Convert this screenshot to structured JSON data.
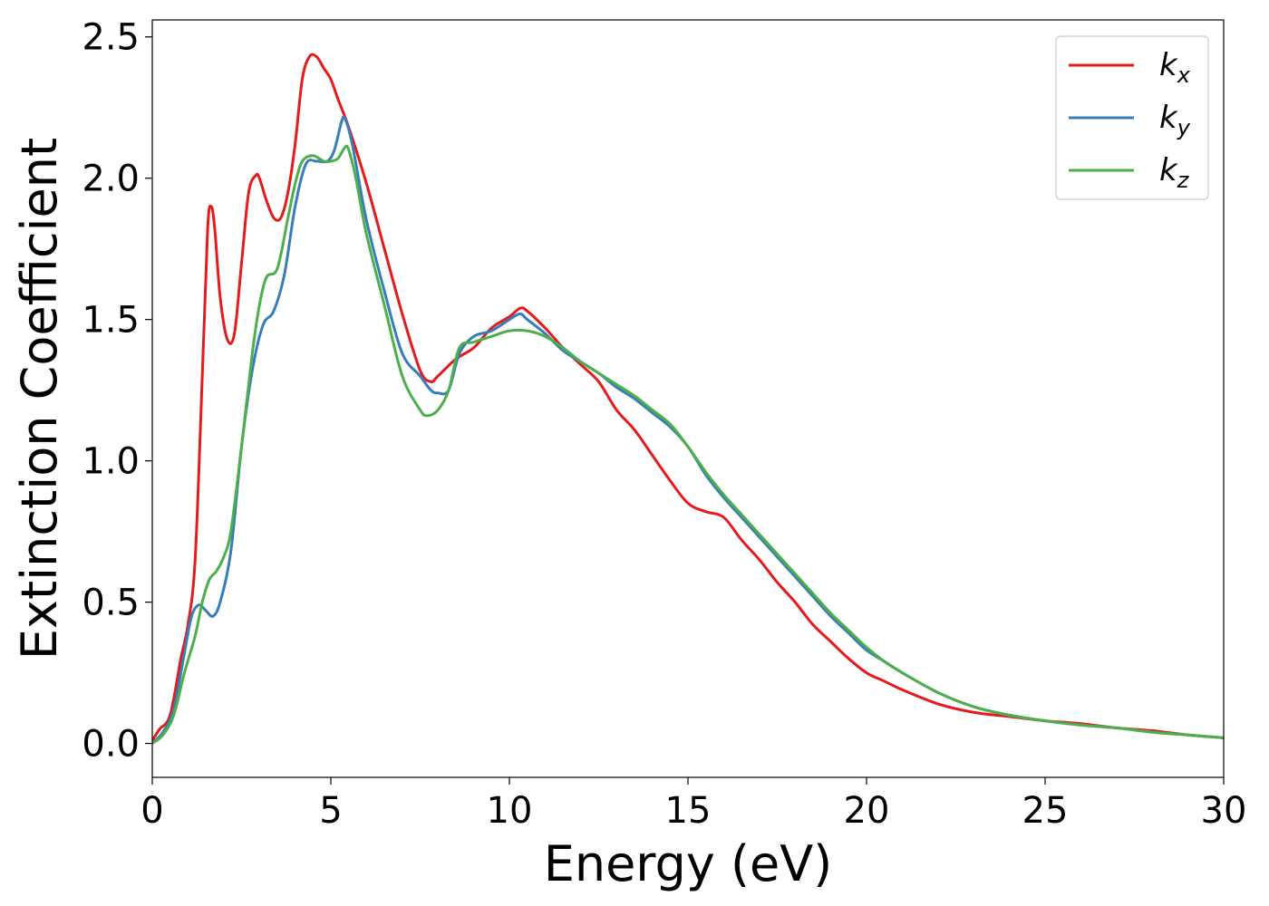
{
  "chart_data": {
    "type": "line",
    "xlabel": "Energy (eV)",
    "ylabel": "Extinction Coefficient",
    "xlim": [
      0,
      30
    ],
    "ylim": [
      -0.12,
      2.56
    ],
    "xticks": [
      0,
      5,
      10,
      15,
      20,
      25,
      30
    ],
    "yticks": [
      0.0,
      0.5,
      1.0,
      1.5,
      2.0,
      2.5
    ],
    "xtick_labels": [
      "0",
      "5",
      "10",
      "15",
      "20",
      "25",
      "30"
    ],
    "ytick_labels": [
      "0.0",
      "0.5",
      "1.0",
      "1.5",
      "2.0",
      "2.5"
    ],
    "grid": false,
    "legend": "top-right",
    "series": [
      {
        "name": "k",
        "subscript": "x",
        "color": "#e41a1c",
        "x": [
          0,
          0.2,
          0.5,
          0.8,
          1.0,
          1.2,
          1.4,
          1.55,
          1.65,
          1.75,
          1.9,
          2.1,
          2.3,
          2.5,
          2.7,
          2.9,
          3.0,
          3.2,
          3.4,
          3.6,
          3.8,
          4.0,
          4.2,
          4.4,
          4.6,
          4.8,
          5.0,
          5.2,
          5.5,
          6.0,
          6.5,
          7.0,
          7.5,
          7.8,
          8.0,
          8.5,
          9.0,
          9.5,
          10.0,
          10.3,
          10.5,
          11.0,
          11.5,
          12.0,
          12.5,
          13.0,
          13.5,
          14.0,
          14.5,
          15.0,
          15.5,
          16.0,
          16.5,
          17.0,
          17.5,
          18.0,
          18.5,
          19.0,
          19.5,
          20.0,
          20.5,
          21.0,
          22.0,
          23.0,
          24.0,
          25.0,
          26.0,
          27.0,
          28.0,
          29.0,
          30.0
        ],
        "y": [
          0.01,
          0.05,
          0.1,
          0.3,
          0.42,
          0.65,
          1.3,
          1.82,
          1.9,
          1.82,
          1.58,
          1.43,
          1.45,
          1.7,
          1.95,
          2.01,
          2.0,
          1.92,
          1.86,
          1.86,
          1.95,
          2.12,
          2.35,
          2.43,
          2.43,
          2.39,
          2.35,
          2.28,
          2.18,
          1.98,
          1.75,
          1.52,
          1.32,
          1.28,
          1.3,
          1.36,
          1.4,
          1.47,
          1.51,
          1.54,
          1.53,
          1.47,
          1.4,
          1.34,
          1.28,
          1.18,
          1.11,
          1.02,
          0.93,
          0.85,
          0.82,
          0.8,
          0.72,
          0.65,
          0.57,
          0.5,
          0.42,
          0.36,
          0.3,
          0.25,
          0.22,
          0.19,
          0.14,
          0.11,
          0.095,
          0.08,
          0.07,
          0.055,
          0.045,
          0.03,
          0.02
        ]
      },
      {
        "name": "k",
        "subscript": "y",
        "color": "#377eb8",
        "x": [
          0,
          0.3,
          0.6,
          0.9,
          1.1,
          1.3,
          1.5,
          1.7,
          1.9,
          2.2,
          2.5,
          2.8,
          3.1,
          3.4,
          3.7,
          4.0,
          4.3,
          4.6,
          4.9,
          5.1,
          5.3,
          5.4,
          5.6,
          6.0,
          6.5,
          7.0,
          7.5,
          7.8,
          8.0,
          8.3,
          8.6,
          9.0,
          9.5,
          10.0,
          10.3,
          10.5,
          11.0,
          11.5,
          12.0,
          12.5,
          13.0,
          13.5,
          14.0,
          14.5,
          15.0,
          15.5,
          16.0,
          16.5,
          17.0,
          17.5,
          18.0,
          18.5,
          19.0,
          19.5,
          20.0,
          20.5,
          21.0,
          22.0,
          23.0,
          24.0,
          25.0,
          26.0,
          27.0,
          28.0,
          29.0,
          30.0
        ],
        "y": [
          0.0,
          0.04,
          0.12,
          0.32,
          0.45,
          0.49,
          0.47,
          0.45,
          0.5,
          0.68,
          1.05,
          1.32,
          1.48,
          1.53,
          1.66,
          1.9,
          2.05,
          2.06,
          2.06,
          2.1,
          2.2,
          2.21,
          2.12,
          1.85,
          1.6,
          1.38,
          1.3,
          1.25,
          1.24,
          1.25,
          1.38,
          1.44,
          1.46,
          1.5,
          1.52,
          1.5,
          1.45,
          1.39,
          1.35,
          1.31,
          1.26,
          1.22,
          1.17,
          1.12,
          1.05,
          0.95,
          0.87,
          0.8,
          0.73,
          0.66,
          0.59,
          0.52,
          0.45,
          0.39,
          0.33,
          0.29,
          0.25,
          0.18,
          0.13,
          0.1,
          0.08,
          0.065,
          0.055,
          0.04,
          0.03,
          0.02
        ]
      },
      {
        "name": "k",
        "subscript": "z",
        "color": "#4daf4a",
        "x": [
          0,
          0.3,
          0.6,
          0.9,
          1.2,
          1.4,
          1.6,
          1.8,
          2.0,
          2.2,
          2.5,
          2.8,
          3.0,
          3.2,
          3.5,
          3.8,
          4.0,
          4.2,
          4.5,
          4.8,
          5.0,
          5.2,
          5.4,
          5.5,
          5.7,
          6.0,
          6.5,
          7.0,
          7.5,
          7.7,
          8.0,
          8.3,
          8.6,
          9.0,
          9.5,
          10.0,
          10.5,
          11.0,
          11.5,
          12.0,
          12.5,
          13.0,
          13.5,
          14.0,
          14.5,
          15.0,
          15.5,
          16.0,
          16.5,
          17.0,
          17.5,
          18.0,
          18.5,
          19.0,
          19.5,
          20.0,
          20.5,
          21.0,
          22.0,
          23.0,
          24.0,
          25.0,
          26.0,
          27.0,
          28.0,
          29.0,
          30.0
        ],
        "y": [
          0.0,
          0.03,
          0.1,
          0.25,
          0.38,
          0.5,
          0.58,
          0.61,
          0.66,
          0.75,
          1.05,
          1.38,
          1.55,
          1.65,
          1.68,
          1.86,
          1.98,
          2.06,
          2.08,
          2.06,
          2.06,
          2.07,
          2.11,
          2.1,
          2.0,
          1.8,
          1.55,
          1.3,
          1.18,
          1.16,
          1.18,
          1.25,
          1.4,
          1.42,
          1.44,
          1.46,
          1.46,
          1.44,
          1.4,
          1.35,
          1.31,
          1.27,
          1.23,
          1.18,
          1.13,
          1.05,
          0.96,
          0.88,
          0.81,
          0.74,
          0.67,
          0.6,
          0.53,
          0.46,
          0.4,
          0.34,
          0.29,
          0.25,
          0.18,
          0.13,
          0.1,
          0.08,
          0.065,
          0.055,
          0.04,
          0.03,
          0.02
        ]
      }
    ]
  }
}
